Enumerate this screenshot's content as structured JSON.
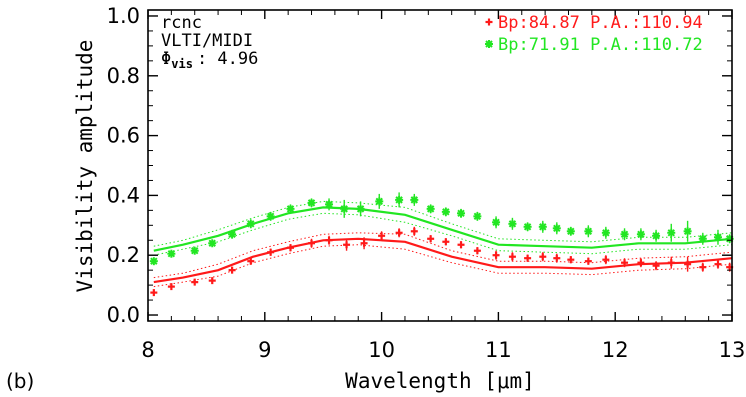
{
  "panel_label": "(b)",
  "colors": {
    "red": "#ff1a1a",
    "green": "#22e622",
    "axes": "#000000"
  },
  "chart_data": {
    "type": "scatter",
    "title": "",
    "xlabel": "Wavelength [μm]",
    "ylabel": "Visibility amplitude",
    "xlim": [
      8,
      13
    ],
    "ylim": [
      -0.02,
      1.02
    ],
    "xticks": [
      8,
      9,
      10,
      11,
      12,
      13
    ],
    "xtick_labels": [
      "8",
      "9",
      "10",
      "11",
      "12",
      "13"
    ],
    "yticks": [
      0.0,
      0.2,
      0.4,
      0.6,
      0.8,
      1.0
    ],
    "ytick_labels": [
      "0.0",
      "0.2",
      "0.4",
      "0.6",
      "0.8",
      "1.0"
    ],
    "grid": false,
    "legend_position": "top-right",
    "annotations": {
      "object": "rcnc",
      "instrument": "VLTI/MIDI",
      "phi_symbol": "Φ",
      "phi_subscript": "vis",
      "phi_value": ": 4.96"
    },
    "series": [
      {
        "name": "Bp:84.87 P.A.:110.94",
        "marker": "+",
        "color": "#ff1a1a",
        "points": [
          {
            "x": 8.05,
            "y": 0.075,
            "err": 0.01
          },
          {
            "x": 8.2,
            "y": 0.095,
            "err": 0.01
          },
          {
            "x": 8.4,
            "y": 0.11,
            "err": 0.01
          },
          {
            "x": 8.55,
            "y": 0.115,
            "err": 0.01
          },
          {
            "x": 8.72,
            "y": 0.15,
            "err": 0.01
          },
          {
            "x": 8.88,
            "y": 0.18,
            "err": 0.012
          },
          {
            "x": 9.05,
            "y": 0.21,
            "err": 0.012
          },
          {
            "x": 9.22,
            "y": 0.225,
            "err": 0.012
          },
          {
            "x": 9.4,
            "y": 0.24,
            "err": 0.015
          },
          {
            "x": 9.55,
            "y": 0.25,
            "err": 0.015
          },
          {
            "x": 9.7,
            "y": 0.235,
            "err": 0.02
          },
          {
            "x": 9.85,
            "y": 0.24,
            "err": 0.02
          },
          {
            "x": 10.0,
            "y": 0.265,
            "err": 0.015
          },
          {
            "x": 10.15,
            "y": 0.275,
            "err": 0.015
          },
          {
            "x": 10.28,
            "y": 0.28,
            "err": 0.015
          },
          {
            "x": 10.42,
            "y": 0.255,
            "err": 0.012
          },
          {
            "x": 10.55,
            "y": 0.245,
            "err": 0.012
          },
          {
            "x": 10.68,
            "y": 0.235,
            "err": 0.012
          },
          {
            "x": 10.82,
            "y": 0.215,
            "err": 0.012
          },
          {
            "x": 10.98,
            "y": 0.2,
            "err": 0.015
          },
          {
            "x": 11.12,
            "y": 0.195,
            "err": 0.015
          },
          {
            "x": 11.25,
            "y": 0.19,
            "err": 0.012
          },
          {
            "x": 11.38,
            "y": 0.195,
            "err": 0.015
          },
          {
            "x": 11.5,
            "y": 0.19,
            "err": 0.015
          },
          {
            "x": 11.62,
            "y": 0.185,
            "err": 0.012
          },
          {
            "x": 11.77,
            "y": 0.18,
            "err": 0.012
          },
          {
            "x": 11.92,
            "y": 0.185,
            "err": 0.015
          },
          {
            "x": 12.08,
            "y": 0.175,
            "err": 0.015
          },
          {
            "x": 12.22,
            "y": 0.175,
            "err": 0.015
          },
          {
            "x": 12.35,
            "y": 0.165,
            "err": 0.015
          },
          {
            "x": 12.48,
            "y": 0.175,
            "err": 0.02
          },
          {
            "x": 12.62,
            "y": 0.17,
            "err": 0.025
          },
          {
            "x": 12.75,
            "y": 0.16,
            "err": 0.015
          },
          {
            "x": 12.88,
            "y": 0.17,
            "err": 0.015
          },
          {
            "x": 12.98,
            "y": 0.16,
            "err": 0.015
          }
        ],
        "model": {
          "x": [
            8.05,
            8.3,
            8.6,
            8.9,
            9.2,
            9.5,
            9.8,
            10.2,
            10.6,
            11.0,
            11.4,
            11.8,
            12.2,
            12.6,
            13.0
          ],
          "y": [
            0.11,
            0.125,
            0.15,
            0.195,
            0.225,
            0.25,
            0.255,
            0.245,
            0.195,
            0.16,
            0.16,
            0.155,
            0.17,
            0.175,
            0.19
          ],
          "upper": [
            0.125,
            0.14,
            0.17,
            0.215,
            0.245,
            0.27,
            0.275,
            0.27,
            0.215,
            0.18,
            0.18,
            0.175,
            0.19,
            0.195,
            0.21
          ],
          "lower": [
            0.095,
            0.11,
            0.13,
            0.175,
            0.205,
            0.23,
            0.235,
            0.22,
            0.175,
            0.14,
            0.14,
            0.135,
            0.15,
            0.155,
            0.17
          ]
        }
      },
      {
        "name": "Bp:71.91 P.A.:110.72",
        "marker": "*",
        "color": "#22e622",
        "points": [
          {
            "x": 8.05,
            "y": 0.18,
            "err": 0.012
          },
          {
            "x": 8.2,
            "y": 0.205,
            "err": 0.012
          },
          {
            "x": 8.4,
            "y": 0.215,
            "err": 0.012
          },
          {
            "x": 8.55,
            "y": 0.24,
            "err": 0.012
          },
          {
            "x": 8.72,
            "y": 0.27,
            "err": 0.015
          },
          {
            "x": 8.88,
            "y": 0.305,
            "err": 0.015
          },
          {
            "x": 9.05,
            "y": 0.33,
            "err": 0.015
          },
          {
            "x": 9.22,
            "y": 0.355,
            "err": 0.015
          },
          {
            "x": 9.4,
            "y": 0.375,
            "err": 0.015
          },
          {
            "x": 9.55,
            "y": 0.37,
            "err": 0.02
          },
          {
            "x": 9.68,
            "y": 0.355,
            "err": 0.03
          },
          {
            "x": 9.82,
            "y": 0.355,
            "err": 0.025
          },
          {
            "x": 9.98,
            "y": 0.38,
            "err": 0.025
          },
          {
            "x": 10.15,
            "y": 0.385,
            "err": 0.025
          },
          {
            "x": 10.28,
            "y": 0.385,
            "err": 0.02
          },
          {
            "x": 10.42,
            "y": 0.355,
            "err": 0.015
          },
          {
            "x": 10.55,
            "y": 0.345,
            "err": 0.015
          },
          {
            "x": 10.68,
            "y": 0.34,
            "err": 0.015
          },
          {
            "x": 10.82,
            "y": 0.33,
            "err": 0.015
          },
          {
            "x": 10.98,
            "y": 0.31,
            "err": 0.02
          },
          {
            "x": 11.12,
            "y": 0.305,
            "err": 0.02
          },
          {
            "x": 11.25,
            "y": 0.295,
            "err": 0.015
          },
          {
            "x": 11.38,
            "y": 0.295,
            "err": 0.02
          },
          {
            "x": 11.5,
            "y": 0.29,
            "err": 0.02
          },
          {
            "x": 11.62,
            "y": 0.28,
            "err": 0.015
          },
          {
            "x": 11.77,
            "y": 0.28,
            "err": 0.02
          },
          {
            "x": 11.92,
            "y": 0.275,
            "err": 0.02
          },
          {
            "x": 12.08,
            "y": 0.27,
            "err": 0.02
          },
          {
            "x": 12.22,
            "y": 0.27,
            "err": 0.02
          },
          {
            "x": 12.35,
            "y": 0.265,
            "err": 0.02
          },
          {
            "x": 12.48,
            "y": 0.275,
            "err": 0.03
          },
          {
            "x": 12.62,
            "y": 0.28,
            "err": 0.035
          },
          {
            "x": 12.75,
            "y": 0.255,
            "err": 0.02
          },
          {
            "x": 12.88,
            "y": 0.26,
            "err": 0.025
          },
          {
            "x": 12.98,
            "y": 0.255,
            "err": 0.015
          }
        ],
        "model": {
          "x": [
            8.05,
            8.3,
            8.6,
            8.9,
            9.2,
            9.5,
            9.8,
            10.2,
            10.6,
            11.0,
            11.4,
            11.8,
            12.2,
            12.6,
            13.0
          ],
          "y": [
            0.215,
            0.235,
            0.265,
            0.305,
            0.34,
            0.36,
            0.355,
            0.335,
            0.285,
            0.235,
            0.23,
            0.225,
            0.24,
            0.24,
            0.255
          ],
          "upper": [
            0.23,
            0.25,
            0.285,
            0.325,
            0.36,
            0.38,
            0.375,
            0.36,
            0.305,
            0.255,
            0.25,
            0.245,
            0.26,
            0.26,
            0.275
          ],
          "lower": [
            0.2,
            0.22,
            0.245,
            0.285,
            0.32,
            0.34,
            0.335,
            0.31,
            0.265,
            0.215,
            0.21,
            0.205,
            0.22,
            0.22,
            0.235
          ]
        }
      }
    ]
  }
}
